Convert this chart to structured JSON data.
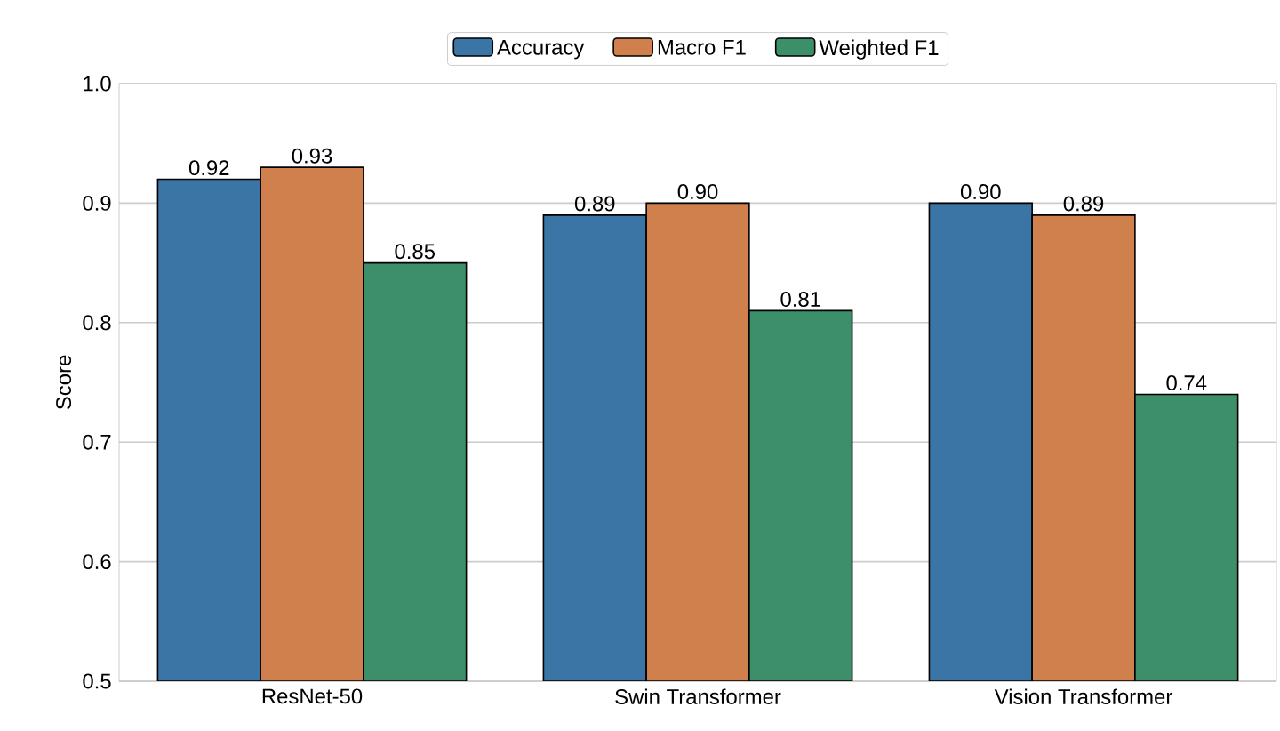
{
  "chart_data": {
    "type": "bar",
    "ylabel": "Score",
    "categories": [
      "ResNet-50",
      "Swin Transformer",
      "Vision Transformer"
    ],
    "series": [
      {
        "name": "Accuracy",
        "color": "#3a75a5",
        "values": [
          0.92,
          0.89,
          0.9
        ],
        "value_labels": [
          "0.92",
          "0.89",
          "0.90"
        ]
      },
      {
        "name": "Macro F1",
        "color": "#d0804c",
        "values": [
          0.93,
          0.9,
          0.89
        ],
        "value_labels": [
          "0.93",
          "0.90",
          "0.89"
        ]
      },
      {
        "name": "Weighted F1",
        "color": "#3d8f69",
        "values": [
          0.85,
          0.81,
          0.74
        ],
        "value_labels": [
          "0.85",
          "0.81",
          "0.74"
        ]
      }
    ],
    "ylim": [
      0.5,
      1.0
    ],
    "yticks": [
      0.5,
      0.6,
      0.7,
      0.8,
      0.9,
      {
        "value": 1.0,
        "label": "1.0"
      }
    ],
    "grid": "y",
    "legend": "top"
  }
}
